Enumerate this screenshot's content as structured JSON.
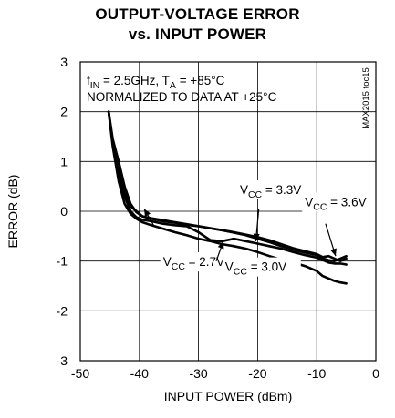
{
  "chart_data": {
    "type": "line",
    "title_line1": "OUTPUT-VOLTAGE ERROR",
    "title_line2": "vs. INPUT POWER",
    "xlabel": "INPUT POWER (dBm)",
    "ylabel": "ERROR (dB)",
    "xlim": [
      -50,
      0
    ],
    "ylim": [
      -3,
      3
    ],
    "x_ticks": [
      -50,
      -40,
      -30,
      -20,
      -10,
      0
    ],
    "y_ticks": [
      3,
      2,
      1,
      0,
      -1,
      -2,
      -3
    ],
    "grid": true,
    "side_label": "MAX2015 toc15",
    "conditions_line1": "fIN = 2.5GHz, TA = +85°C",
    "conditions_line2": "NORMALIZED TO DATA AT +25°C",
    "series": [
      {
        "name": "VCC = 2.7V",
        "label_pos": [
          -36,
          -1.1
        ],
        "x": [
          -45.2,
          -44.5,
          -43.5,
          -42.5,
          -41.5,
          -40.5,
          -39.5,
          -38,
          -36,
          -34,
          -32,
          -30,
          -28,
          -26,
          -24,
          -22,
          -20,
          -18,
          -16,
          -14,
          -12,
          -10,
          -9,
          -8,
          -7,
          -6,
          -5
        ],
        "y": [
          2.0,
          1.3,
          0.6,
          0.15,
          -0.05,
          -0.15,
          -0.22,
          -0.28,
          -0.35,
          -0.42,
          -0.48,
          -0.55,
          -0.6,
          -0.66,
          -0.7,
          -0.75,
          -0.82,
          -0.9,
          -0.97,
          -1.03,
          -1.1,
          -1.2,
          -1.3,
          -1.35,
          -1.4,
          -1.43,
          -1.45
        ]
      },
      {
        "name": "VCC = 3.0V",
        "label_pos": [
          -25.5,
          -1.2
        ],
        "x": [
          -45.2,
          -44.5,
          -43.5,
          -42.5,
          -41.5,
          -40.5,
          -39.5,
          -38,
          -36,
          -34,
          -32,
          -30,
          -28,
          -26,
          -24,
          -22,
          -20,
          -18,
          -16,
          -14,
          -12,
          -10,
          -9,
          -8,
          -7,
          -6,
          -5
        ],
        "y": [
          2.0,
          1.35,
          0.75,
          0.3,
          0.0,
          -0.12,
          -0.17,
          -0.2,
          -0.25,
          -0.28,
          -0.3,
          -0.42,
          -0.58,
          -0.6,
          -0.55,
          -0.6,
          -0.65,
          -0.7,
          -0.75,
          -0.82,
          -0.88,
          -0.93,
          -0.98,
          -1.03,
          -1.05,
          -1.05,
          -1.07
        ]
      },
      {
        "name": "VCC = 3.3V",
        "label_pos": [
          -23,
          0.35
        ],
        "x": [
          -45.2,
          -44.5,
          -43.5,
          -42.5,
          -41.5,
          -40.5,
          -39.5,
          -38,
          -36,
          -34,
          -32,
          -30,
          -28,
          -26,
          -24,
          -22,
          -20,
          -18,
          -16,
          -14,
          -12,
          -10,
          -9,
          -8,
          -7,
          -6,
          -5
        ],
        "y": [
          2.0,
          1.4,
          0.9,
          0.4,
          0.1,
          0.0,
          -0.1,
          -0.15,
          -0.2,
          -0.23,
          -0.27,
          -0.3,
          -0.34,
          -0.38,
          -0.43,
          -0.48,
          -0.55,
          -0.62,
          -0.7,
          -0.77,
          -0.83,
          -0.88,
          -0.95,
          -0.98,
          -1.0,
          -0.95,
          -0.9
        ]
      },
      {
        "name": "VCC = 3.6V",
        "label_pos": [
          -12,
          0.1
        ],
        "x": [
          -45.2,
          -44.5,
          -43.5,
          -42.5,
          -41.5,
          -40.5,
          -39.5,
          -38,
          -36,
          -34,
          -32,
          -30,
          -28,
          -26,
          -24,
          -22,
          -20,
          -18,
          -16,
          -14,
          -12,
          -10,
          -9,
          -8,
          -7,
          -6,
          -5
        ],
        "y": [
          2.0,
          1.45,
          1.0,
          0.5,
          0.15,
          -0.02,
          -0.1,
          -0.14,
          -0.18,
          -0.22,
          -0.26,
          -0.3,
          -0.34,
          -0.38,
          -0.42,
          -0.47,
          -0.52,
          -0.58,
          -0.66,
          -0.74,
          -0.8,
          -0.86,
          -0.92,
          -0.9,
          -0.95,
          -1.0,
          -0.95
        ]
      }
    ]
  }
}
